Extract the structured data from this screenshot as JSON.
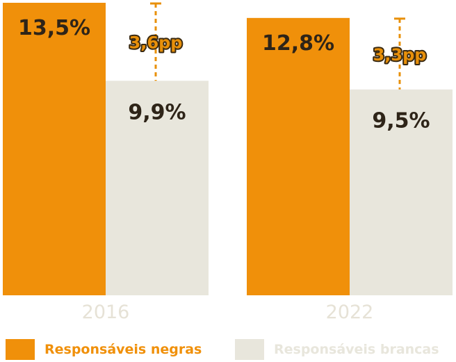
{
  "chart_data": {
    "type": "bar",
    "categories": [
      "2016",
      "2022"
    ],
    "series": [
      {
        "name": "Responsáveis negras",
        "values": [
          13.5,
          12.8
        ],
        "labels": [
          "13,5%",
          "12,8%"
        ]
      },
      {
        "name": "Responsáveis brancas",
        "values": [
          9.9,
          9.5
        ],
        "labels": [
          "9,9%",
          "9,5%"
        ]
      }
    ],
    "annotations": [
      {
        "category": "2016",
        "text": "3,6pp"
      },
      {
        "category": "2022",
        "text": "3,3pp"
      }
    ],
    "ylim": [
      0,
      13.5
    ],
    "title": "",
    "xlabel": "",
    "ylabel": "",
    "grid": false,
    "legend_position": "bottom"
  },
  "colors": {
    "negras": "#f0900a",
    "brancas": "#e8e6dc",
    "label_dark": "#2e2418",
    "gap_line": "#e8900a",
    "tick": "#e6e2d6"
  }
}
